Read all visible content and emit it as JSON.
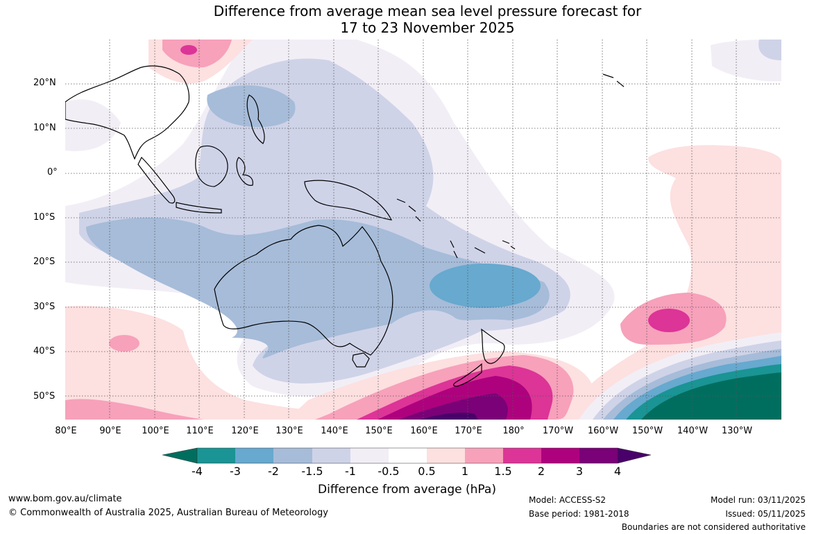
{
  "title": {
    "line1": "Difference from average mean sea level pressure forecast for",
    "line2": "17 to 23 November 2025"
  },
  "lat_labels": [
    "20°N",
    "10°N",
    "0°",
    "10°S",
    "20°S",
    "30°S",
    "40°S",
    "50°S"
  ],
  "lon_labels": [
    "80°E",
    "90°E",
    "100°E",
    "110°E",
    "120°E",
    "130°E",
    "140°E",
    "150°E",
    "160°E",
    "170°E",
    "180°",
    "170°W",
    "160°W",
    "150°W",
    "140°W",
    "130°W"
  ],
  "colorbar": {
    "title": "Difference from average (hPa)",
    "ticks": [
      "-4",
      "-3",
      "-2",
      "-1.5",
      "-1",
      "-0.5",
      "0.5",
      "1",
      "1.5",
      "2",
      "3",
      "4"
    ],
    "colors": {
      "below_-4": "#006e5f",
      "-4_-3": "#1a9494",
      "-3_-2": "#67a9cf",
      "-2_-1.5": "#a6bcd9",
      "-1.5_-1": "#cfd3e8",
      "-1_-0.5": "#f2eef6",
      "-0.5_0.5": "#ffffff",
      "0.5_1": "#fde0e0",
      "1_1.5": "#f7a1bb",
      "1.5_2": "#dd3497",
      "2_3": "#ae017e",
      "3_4": "#7a0177",
      "above_4": "#49006a"
    }
  },
  "footer": {
    "website": "www.bom.gov.au/climate",
    "copyright": "© Commonwealth of Australia 2025, Australian Bureau of Meteorology",
    "model": "Model: ACCESS-S2",
    "base_period": "Base period: 1981-2018",
    "model_run": "Model run: 03/11/2025",
    "issued": "Issued: 05/11/2025",
    "disclaimer": "Boundaries are not considered authoritative"
  }
}
